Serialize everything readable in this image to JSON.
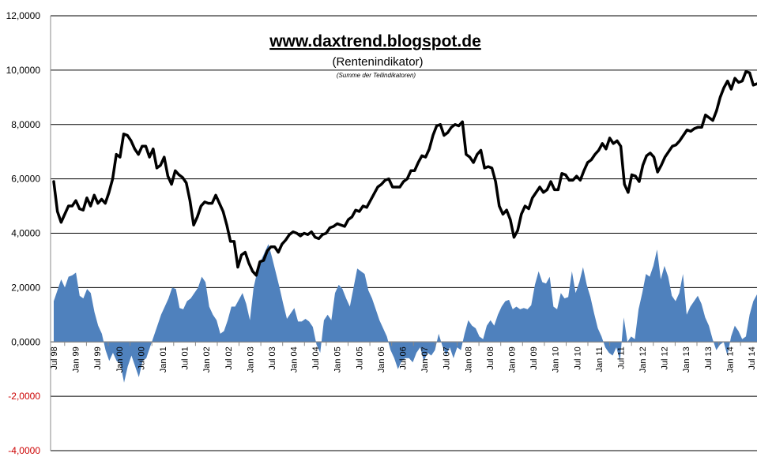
{
  "chart_data": {
    "type": "line",
    "title": "www.daxtrend.blogspot.de",
    "subtitle": "(Rentenindikator)",
    "note": "(Summe der Teilindikatoren)",
    "ylim": [
      -4,
      12
    ],
    "yticks": [
      12,
      10,
      8,
      6,
      4,
      2,
      0,
      -2,
      -4
    ],
    "ytick_labels": [
      "12,0000",
      "10,0000",
      "8,0000",
      "6,0000",
      "4,0000",
      "2,0000",
      "0,0000",
      "-2,0000",
      "-4,0000"
    ],
    "negative_label_color": "#cc0000",
    "grid": true,
    "x_start": "Jul 98",
    "xtick_labels": [
      "Jul 98",
      "Jan 99",
      "Jul 99",
      "Jan 00",
      "Jul 00",
      "Jan 01",
      "Jul 01",
      "Jan 02",
      "Jul 02",
      "Jan 03",
      "Jul 03",
      "Jan 04",
      "Jul 04",
      "Jan 05",
      "Jul 05",
      "Jan 06",
      "Jul 06",
      "Jan 07",
      "Jul 07",
      "Jan 08",
      "Jul 08",
      "Jan 09",
      "Jul 09",
      "Jan 10",
      "Jul 10",
      "Jan 11",
      "Jul 11",
      "Jan 12",
      "Jul 12",
      "Jan 13",
      "Jul 13",
      "Jan 14",
      "Jul 14"
    ],
    "series": [
      {
        "name": "Rentenindikator",
        "type": "line",
        "color": "#000000",
        "values": [
          5.9,
          4.8,
          4.4,
          4.7,
          5.0,
          5.0,
          5.2,
          4.9,
          4.85,
          5.3,
          5.0,
          5.4,
          5.1,
          5.25,
          5.1,
          5.5,
          6.0,
          6.9,
          6.8,
          7.65,
          7.6,
          7.4,
          7.1,
          6.9,
          7.2,
          7.2,
          6.8,
          7.1,
          6.4,
          6.5,
          6.8,
          6.1,
          5.8,
          6.3,
          6.15,
          6.05,
          5.85,
          5.2,
          4.3,
          4.6,
          5.0,
          5.15,
          5.1,
          5.1,
          5.4,
          5.1,
          4.8,
          4.3,
          3.7,
          3.7,
          2.75,
          3.2,
          3.3,
          2.9,
          2.6,
          2.45,
          2.95,
          3.0,
          3.35,
          3.5,
          3.5,
          3.3,
          3.6,
          3.75,
          3.95,
          4.05,
          4.0,
          3.9,
          4.0,
          3.95,
          4.05,
          3.85,
          3.8,
          3.95,
          4.0,
          4.2,
          4.25,
          4.35,
          4.3,
          4.25,
          4.5,
          4.6,
          4.85,
          4.8,
          5.0,
          4.95,
          5.2,
          5.45,
          5.7,
          5.8,
          5.95,
          6.0,
          5.7,
          5.7,
          5.7,
          5.9,
          6.0,
          6.3,
          6.3,
          6.6,
          6.85,
          6.8,
          7.1,
          7.6,
          7.95,
          8.0,
          7.6,
          7.7,
          7.9,
          8.0,
          7.95,
          8.1,
          6.9,
          6.8,
          6.6,
          6.9,
          7.05,
          6.4,
          6.45,
          6.4,
          5.9,
          5.0,
          4.7,
          4.85,
          4.5,
          3.85,
          4.1,
          4.7,
          5.0,
          4.9,
          5.3,
          5.5,
          5.7,
          5.5,
          5.6,
          5.9,
          5.6,
          5.6,
          6.2,
          6.15,
          5.95,
          5.95,
          6.1,
          5.95,
          6.3,
          6.6,
          6.7,
          6.9,
          7.05,
          7.3,
          7.1,
          7.5,
          7.3,
          7.4,
          7.2,
          5.8,
          5.5,
          6.15,
          6.1,
          5.9,
          6.5,
          6.85,
          6.95,
          6.8,
          6.25,
          6.5,
          6.8,
          7.0,
          7.2,
          7.25,
          7.4,
          7.6,
          7.8,
          7.75,
          7.85,
          7.9,
          7.9,
          8.35,
          8.25,
          8.15,
          8.5,
          9.0,
          9.35,
          9.6,
          9.3,
          9.7,
          9.55,
          9.6,
          9.95,
          9.9,
          9.45,
          9.5
        ]
      },
      {
        "name": "Teilindikatoren",
        "type": "area",
        "color": "#4f81bd",
        "values": [
          1.5,
          1.9,
          2.3,
          2.0,
          2.4,
          2.45,
          2.55,
          1.7,
          1.6,
          1.95,
          1.8,
          1.1,
          0.6,
          0.3,
          -0.3,
          -0.7,
          -0.4,
          -0.7,
          -0.8,
          -1.5,
          -0.9,
          -0.5,
          -0.9,
          -1.3,
          -0.7,
          -0.6,
          -0.2,
          0.2,
          0.6,
          1.0,
          1.3,
          1.6,
          2.0,
          1.95,
          1.25,
          1.2,
          1.5,
          1.6,
          1.8,
          2.0,
          2.4,
          2.2,
          1.3,
          1.0,
          0.8,
          0.3,
          0.4,
          0.8,
          1.3,
          1.3,
          1.55,
          1.8,
          1.4,
          0.8,
          2.0,
          2.6,
          3.0,
          3.3,
          3.6,
          3.1,
          2.55,
          2.0,
          1.4,
          0.85,
          1.05,
          1.25,
          0.75,
          0.75,
          0.85,
          0.75,
          0.55,
          -0.1,
          -0.4,
          0.8,
          1.0,
          0.8,
          1.8,
          2.1,
          1.95,
          1.6,
          1.3,
          2.0,
          2.7,
          2.6,
          2.5,
          1.9,
          1.6,
          1.2,
          0.8,
          0.5,
          0.2,
          -0.3,
          -0.6,
          -1.0,
          -0.7,
          -0.6,
          -0.6,
          -0.75,
          -0.4,
          -0.2,
          -0.7,
          -0.4,
          -0.5,
          -0.3,
          0.3,
          -0.15,
          -0.5,
          -0.2,
          -0.6,
          -0.2,
          -0.3,
          0.3,
          0.8,
          0.6,
          0.5,
          0.2,
          0.1,
          0.6,
          0.8,
          0.6,
          1.0,
          1.3,
          1.5,
          1.55,
          1.2,
          1.3,
          1.2,
          1.25,
          1.2,
          1.35,
          2.1,
          2.6,
          2.2,
          2.15,
          2.4,
          1.3,
          1.2,
          1.8,
          1.6,
          1.65,
          2.6,
          1.8,
          2.2,
          2.75,
          2.1,
          1.65,
          1.05,
          0.5,
          0.2,
          -0.2,
          -0.4,
          -0.5,
          -0.2,
          -0.7,
          0.9,
          0.0,
          0.2,
          0.1,
          1.2,
          1.8,
          2.5,
          2.4,
          2.8,
          3.4,
          2.3,
          2.8,
          2.4,
          1.7,
          1.5,
          1.8,
          2.5,
          1.0,
          1.3,
          1.5,
          1.7,
          1.4,
          0.9,
          0.6,
          0.1,
          -0.3,
          -0.1,
          0.0,
          -0.5,
          0.2,
          0.6,
          0.4,
          0.1,
          0.2,
          1.0,
          1.5,
          1.75
        ]
      }
    ]
  }
}
